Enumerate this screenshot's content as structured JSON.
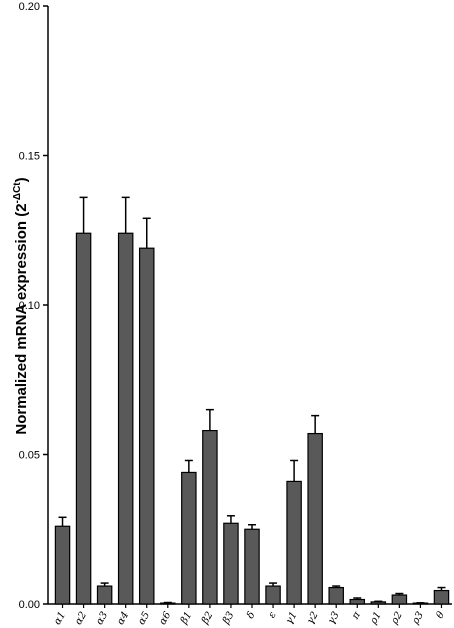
{
  "chart_data": {
    "type": "bar",
    "categories": [
      "α1",
      "α2",
      "α3",
      "α4",
      "α5",
      "α6",
      "β1",
      "β2",
      "β3",
      "δ",
      "ε",
      "γ1",
      "γ2",
      "γ3",
      "π",
      "ρ1",
      "ρ2",
      "ρ3",
      "θ"
    ],
    "values": [
      0.026,
      0.124,
      0.006,
      0.124,
      0.119,
      0.0003,
      0.044,
      0.058,
      0.027,
      0.025,
      0.006,
      0.041,
      0.057,
      0.0055,
      0.0015,
      0.0007,
      0.003,
      0.0003,
      0.0045
    ],
    "errors": [
      0.003,
      0.012,
      0.001,
      0.012,
      0.01,
      0.0002,
      0.004,
      0.007,
      0.0025,
      0.0015,
      0.001,
      0.007,
      0.006,
      0.0005,
      0.0005,
      0.0002,
      0.0005,
      0.0001,
      0.001
    ],
    "title": "",
    "xlabel": "",
    "ylabel": "Normalized mRNA expression (2",
    "ylabel_superscript": "-ΔCt",
    "ylabel_close": ")",
    "ylim": [
      0,
      0.2
    ],
    "yticks": [
      "0.00",
      "0.05",
      "0.10",
      "0.15",
      "0.20"
    ],
    "ytick_values": [
      0,
      0.05,
      0.1,
      0.15,
      0.2
    ],
    "bar_color": "#595959",
    "grid": false,
    "legend": "none"
  }
}
